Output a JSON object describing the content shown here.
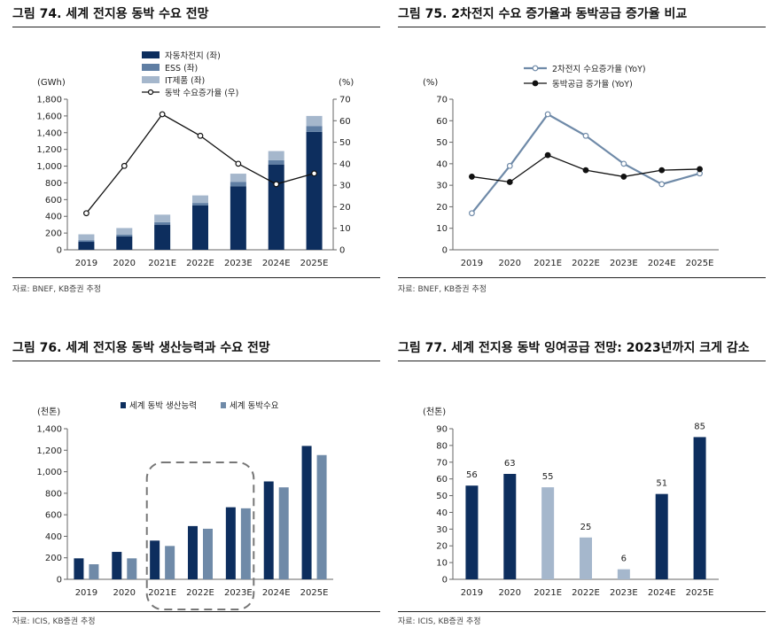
{
  "colors": {
    "navy": "#0d2e5e",
    "steel": "#5f7ea3",
    "light": "#a5b7cc",
    "line_blue": "#6f8aa8",
    "black": "#111111"
  },
  "charts": [
    {
      "title": "그림 74. 세계 전지용 동박 수요 전망",
      "source": "자료: BNEF, KB증권 추정",
      "chart_data": {
        "type": "bar",
        "stacked": true,
        "categories": [
          "2019",
          "2020",
          "2021E",
          "2022E",
          "2023E",
          "2024E",
          "2025E"
        ],
        "ylabel": "(GWh)",
        "y2label": "(%)",
        "ylim": [
          0,
          1800
        ],
        "yticks": [
          "0",
          "200",
          "400",
          "600",
          "800",
          "1,000",
          "1,200",
          "1,400",
          "1,600",
          "1,800"
        ],
        "y2lim": [
          0,
          70
        ],
        "y2ticks": [
          "0",
          "10",
          "20",
          "30",
          "40",
          "50",
          "60",
          "70"
        ],
        "legend_position": "top",
        "series": [
          {
            "name": "자동차전지 (좌)",
            "kind": "bar",
            "color": "#0d2e5e",
            "values": [
              95,
              160,
              300,
              530,
              760,
              1020,
              1410
            ]
          },
          {
            "name": "ESS (좌)",
            "kind": "bar",
            "color": "#5f7ea3",
            "values": [
              20,
              20,
              30,
              30,
              50,
              50,
              70
            ]
          },
          {
            "name": "IT제품 (좌)",
            "kind": "bar",
            "color": "#a5b7cc",
            "values": [
              70,
              80,
              90,
              90,
              100,
              110,
              120
            ]
          },
          {
            "name": "동박 수요증가율 (우)",
            "kind": "line",
            "axis": "right",
            "color": "#111111",
            "values": [
              17,
              39,
              63,
              53,
              40,
              30.5,
              35.5
            ]
          }
        ]
      }
    },
    {
      "title": "그림 75. 2차전지 수요 증가율과 동박공급 증가율 비교",
      "source": "자료: BNEF, KB증권 추정",
      "chart_data": {
        "type": "line",
        "categories": [
          "2019",
          "2020",
          "2021E",
          "2022E",
          "2023E",
          "2024E",
          "2025E"
        ],
        "ylabel": "(%)",
        "ylim": [
          0,
          70
        ],
        "yticks": [
          "0",
          "10",
          "20",
          "30",
          "40",
          "50",
          "60",
          "70"
        ],
        "legend_position": "top",
        "series": [
          {
            "name": "2차전지 수요증가율 (YoY)",
            "color": "#6f8aa8",
            "marker": "open",
            "values": [
              17,
              39,
              63,
              53,
              40,
              30.5,
              35.5
            ]
          },
          {
            "name": "동박공급 증가율 (YoY)",
            "color": "#111111",
            "marker": "filled",
            "values": [
              34,
              31.5,
              44,
              37,
              34,
              37,
              37.5
            ]
          }
        ]
      }
    },
    {
      "title": "그림 76. 세계 전지용 동박 생산능력과 수요 전망",
      "source": "자료: ICIS, KB증권 추정",
      "chart_data": {
        "type": "bar",
        "categories": [
          "2019",
          "2020",
          "2021E",
          "2022E",
          "2023E",
          "2024E",
          "2025E"
        ],
        "ylabel": "(천톤)",
        "ylim": [
          0,
          1400
        ],
        "yticks": [
          "0",
          "200",
          "400",
          "600",
          "800",
          "1,000",
          "1,200",
          "1,400"
        ],
        "legend_position": "top",
        "highlight": {
          "from": "2021E",
          "to": "2023E",
          "style": "dashed-rounded-box"
        },
        "series": [
          {
            "name": "세계 동박 생산능력",
            "color": "#0d2e5e",
            "values": [
              195,
              255,
              360,
              495,
              670,
              910,
              1240
            ]
          },
          {
            "name": "세계 동박수요",
            "color": "#6f8aa8",
            "values": [
              140,
              195,
              310,
              470,
              660,
              855,
              1155
            ]
          }
        ]
      }
    },
    {
      "title": "그림 77. 세계 전지용 동박 잉여공급 전망: 2023년까지 크게 감소",
      "source": "자료: ICIS, KB증권 추정",
      "chart_data": {
        "type": "bar",
        "categories": [
          "2019",
          "2020",
          "2021E",
          "2022E",
          "2023E",
          "2024E",
          "2025E"
        ],
        "ylabel": "(천톤)",
        "ylim": [
          0,
          90
        ],
        "yticks": [
          "0",
          "10",
          "20",
          "30",
          "40",
          "50",
          "60",
          "70",
          "80",
          "90"
        ],
        "data_labels": [
          "56",
          "63",
          "55",
          "25",
          "6",
          "51",
          "85"
        ],
        "series": [
          {
            "name": "",
            "values": [
              56,
              63,
              55,
              25,
              6,
              51,
              85
            ],
            "colors": [
              "#0d2e5e",
              "#0d2e5e",
              "#a5b7cc",
              "#a5b7cc",
              "#a5b7cc",
              "#0d2e5e",
              "#0d2e5e"
            ]
          }
        ]
      }
    }
  ]
}
